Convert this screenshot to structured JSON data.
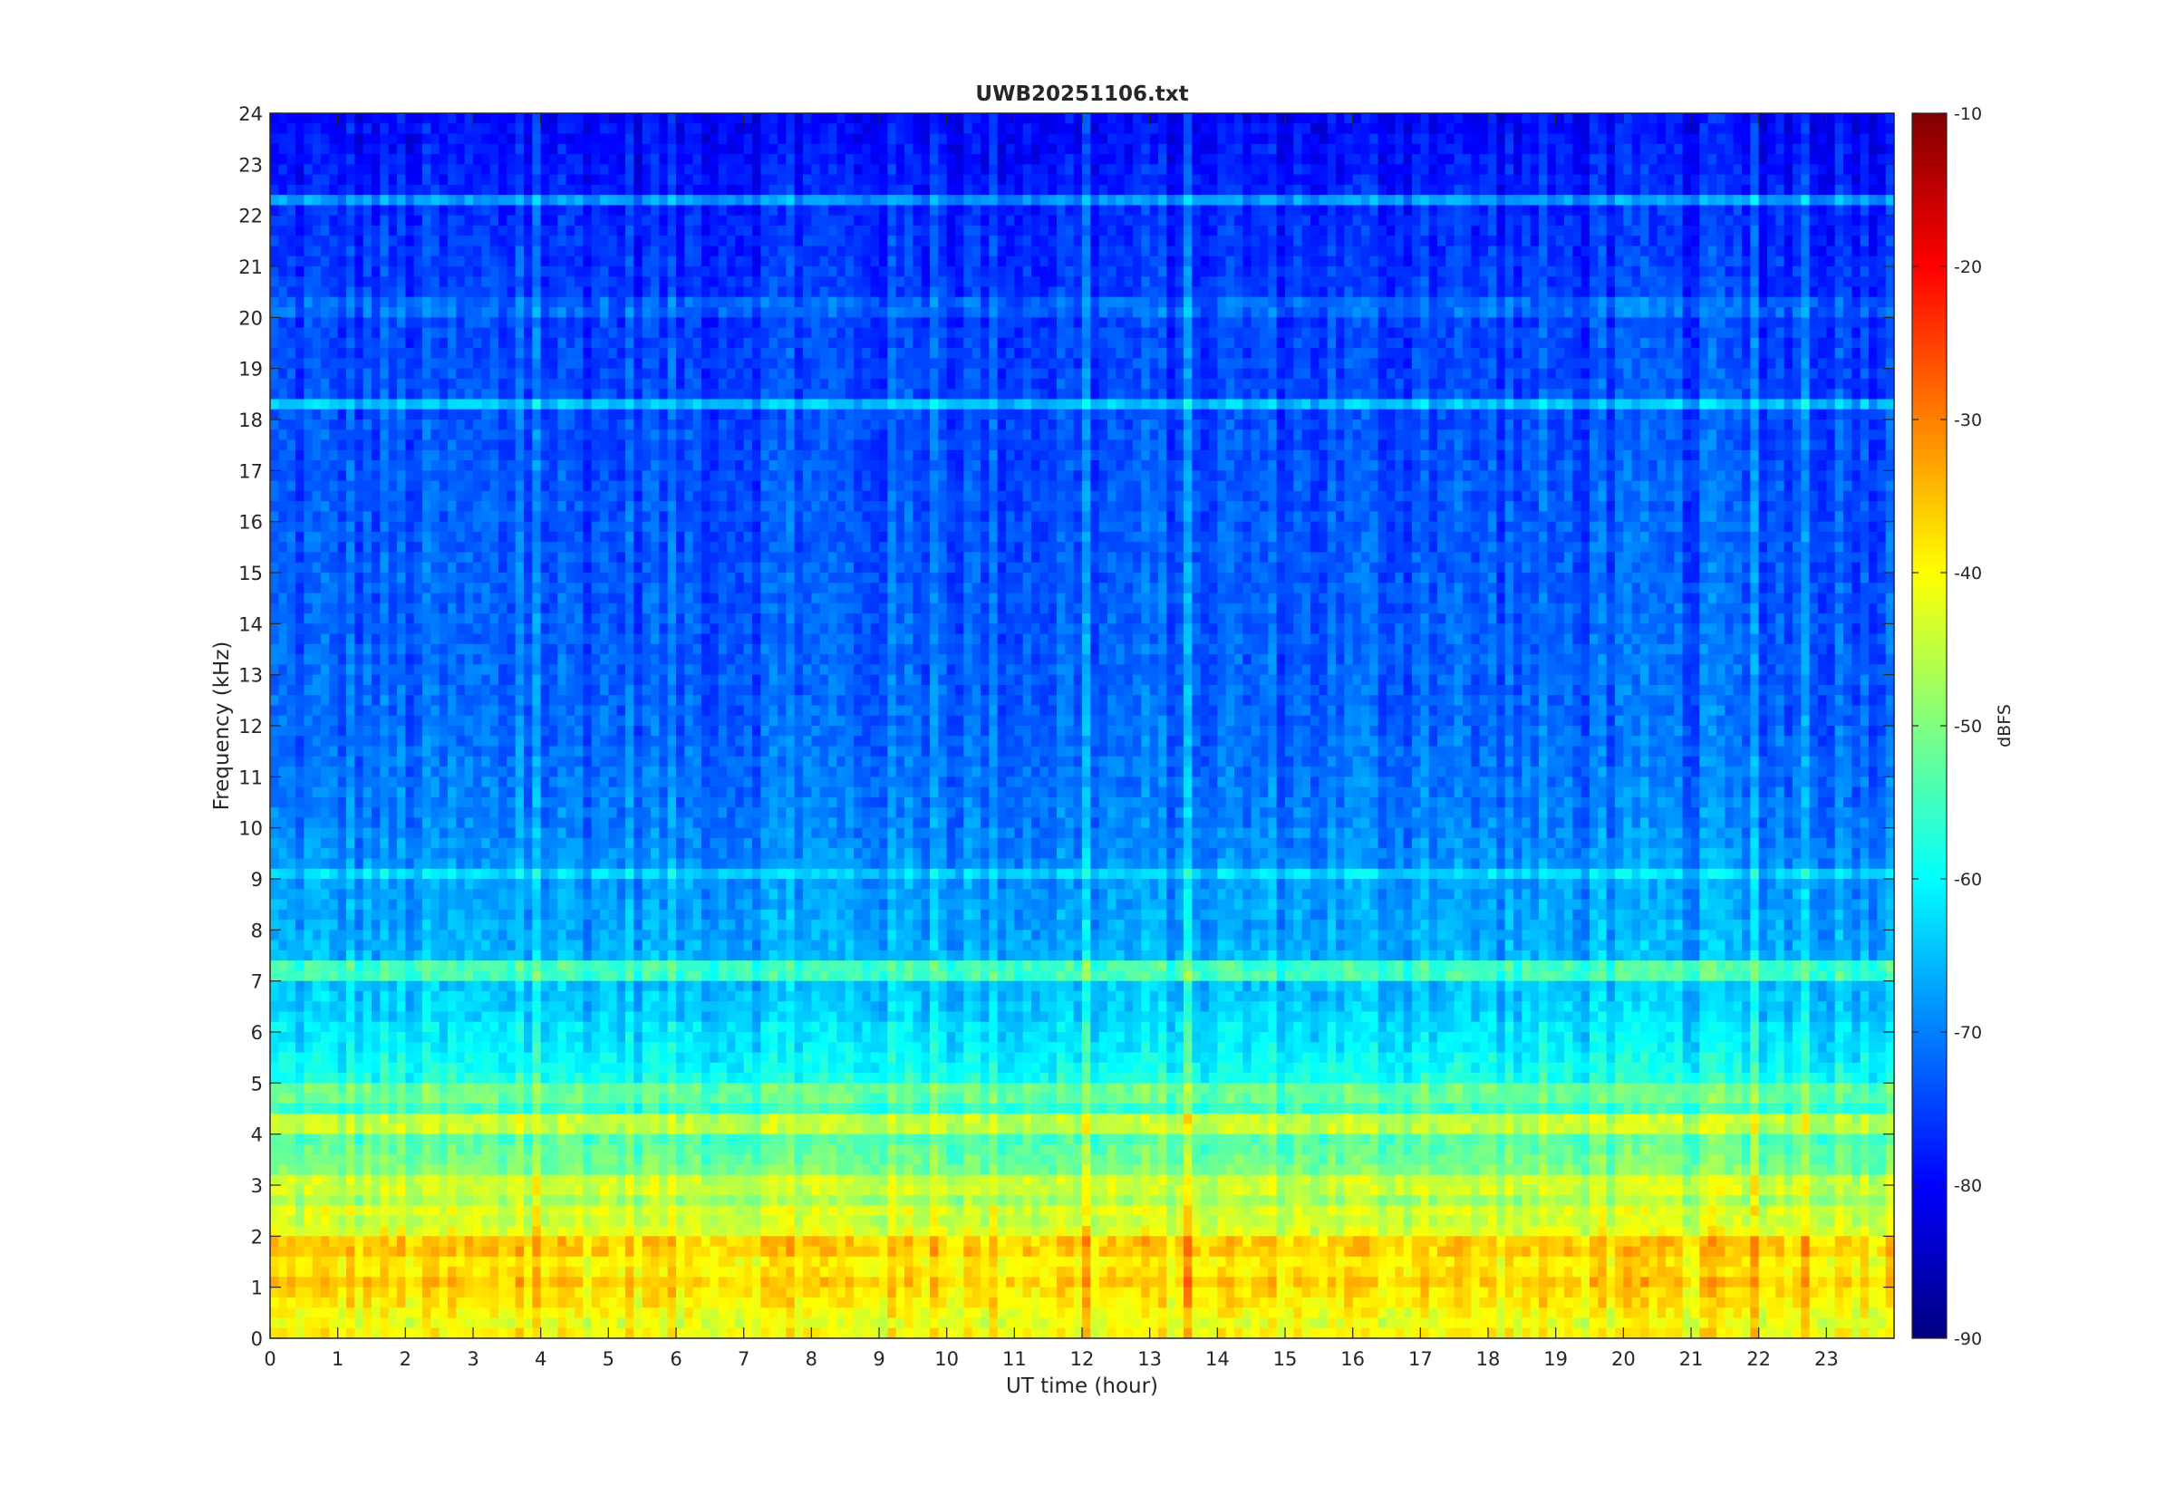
{
  "chart_data": {
    "type": "heatmap",
    "title": "UWB20251106.txt",
    "xlabel": "UT time (hour)",
    "ylabel": "Frequency (kHz)",
    "xlim": [
      0,
      24
    ],
    "ylim": [
      0,
      24
    ],
    "x_ticks": [
      0,
      1,
      2,
      3,
      4,
      5,
      6,
      7,
      8,
      9,
      10,
      11,
      12,
      13,
      14,
      15,
      16,
      17,
      18,
      19,
      20,
      21,
      22,
      23
    ],
    "y_ticks": [
      0,
      1,
      2,
      3,
      4,
      5,
      6,
      7,
      8,
      9,
      10,
      11,
      12,
      13,
      14,
      15,
      16,
      17,
      18,
      19,
      20,
      21,
      22,
      23,
      24
    ],
    "colorbar": {
      "label": "dBFS",
      "range": [
        -90,
        -10
      ],
      "ticks": [
        -10,
        -20,
        -30,
        -40,
        -50,
        -60,
        -70,
        -80,
        -90
      ],
      "colormap": "jet"
    },
    "level_profile": {
      "description_units": "dBFS vs frequency (kHz)",
      "freq": [
        0,
        0.3,
        0.8,
        1.2,
        1.8,
        2.5,
        3,
        4,
        5,
        6,
        7,
        8,
        9,
        10,
        12,
        15,
        18,
        20,
        22,
        24
      ],
      "level": [
        -45,
        -42,
        -38,
        -38,
        -40,
        -46,
        -49,
        -54,
        -58,
        -63,
        -65,
        -67,
        -68,
        -70,
        -72,
        -73,
        -74,
        -75,
        -77,
        -80
      ]
    },
    "bands": [
      {
        "freq": 18.3,
        "level": -65
      },
      {
        "freq": 20.2,
        "level": -72
      },
      {
        "freq": 22.3,
        "level": -68
      },
      {
        "freq": 9.1,
        "level": -63
      },
      {
        "freq": 7.2,
        "level": -55
      },
      {
        "freq": 6.0,
        "level": -62
      },
      {
        "freq": 4.8,
        "level": -52
      },
      {
        "freq": 4.2,
        "level": -45
      },
      {
        "freq": 3.0,
        "level": -44
      },
      {
        "freq": 2.5,
        "level": -43
      },
      {
        "freq": 1.8,
        "level": -36
      },
      {
        "freq": 1.1,
        "level": -36
      },
      {
        "freq": 0.1,
        "level": -40
      }
    ],
    "grid": false,
    "legend": "colorbar-right"
  }
}
